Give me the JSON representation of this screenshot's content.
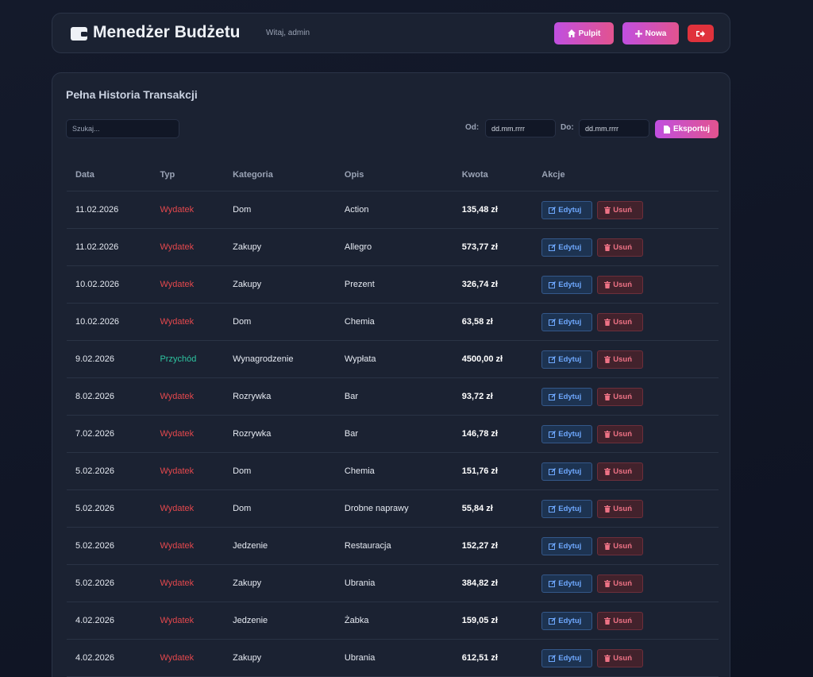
{
  "header": {
    "title": "Menedżer Budżetu",
    "greeting": "Witaj, admin",
    "buttons": {
      "dashboard": "Pulpit",
      "new": "Nowa"
    }
  },
  "panel": {
    "title": "Pełna Historia Transakcji",
    "search_placeholder": "Szukaj...",
    "from_label": "Od:",
    "to_label": "Do:",
    "date_placeholder": "dd.mm.rrrr",
    "export": "Eksportuj"
  },
  "table": {
    "columns": [
      "Data",
      "Typ",
      "Kategoria",
      "Opis",
      "Kwota",
      "Akcje"
    ],
    "actions": {
      "edit": "Edytuj",
      "delete": "Usuń"
    },
    "type_colors": {
      "Wydatek": "#e5484d",
      "Przychód": "#2ec4a0"
    },
    "rows": [
      [
        "11.02.2026",
        "Wydatek",
        "Dom",
        "Action",
        "135,48 zł"
      ],
      [
        "11.02.2026",
        "Wydatek",
        "Zakupy",
        "Allegro",
        "573,77 zł"
      ],
      [
        "10.02.2026",
        "Wydatek",
        "Zakupy",
        "Prezent",
        "326,74 zł"
      ],
      [
        "10.02.2026",
        "Wydatek",
        "Dom",
        "Chemia",
        "63,58 zł"
      ],
      [
        "9.02.2026",
        "Przychód",
        "Wynagrodzenie",
        "Wypłata",
        "4500,00 zł"
      ],
      [
        "8.02.2026",
        "Wydatek",
        "Rozrywka",
        "Bar",
        "93,72 zł"
      ],
      [
        "7.02.2026",
        "Wydatek",
        "Rozrywka",
        "Bar",
        "146,78 zł"
      ],
      [
        "5.02.2026",
        "Wydatek",
        "Dom",
        "Chemia",
        "151,76 zł"
      ],
      [
        "5.02.2026",
        "Wydatek",
        "Dom",
        "Drobne naprawy",
        "55,84 zł"
      ],
      [
        "5.02.2026",
        "Wydatek",
        "Jedzenie",
        "Restauracja",
        "152,27 zł"
      ],
      [
        "5.02.2026",
        "Wydatek",
        "Zakupy",
        "Ubrania",
        "384,82 zł"
      ],
      [
        "4.02.2026",
        "Wydatek",
        "Jedzenie",
        "Żabka",
        "159,05 zł"
      ],
      [
        "4.02.2026",
        "Wydatek",
        "Zakupy",
        "Ubrania",
        "612,51 zł"
      ]
    ]
  }
}
